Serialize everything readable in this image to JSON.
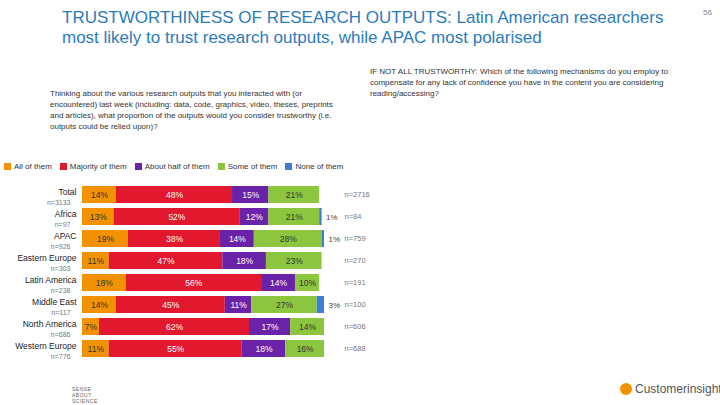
{
  "chart_data": {
    "type": "bar",
    "title": "TRUSTWORTHINESS OF RESEARCH OUTPUTS: Latin American researchers most likely to trust research outputs, while APAC most polarised",
    "page_number": "56",
    "question": "Thinking about the various research outputs that you interacted with (or encountered) last week (including: data, code, graphics, video, theses, preprints and articles), what proportion of the outputs would you consider trustworthy (i.e. outputs could be relied upon)?",
    "followup_question": "IF NOT ALL TRUSTWORTHY: Which of the following mechanisms do you employ to compensate for any lack of confidence you have in the content you are considering reading/accessing?",
    "categories": [
      "Total",
      "Africa",
      "APAC",
      "Eastern Europe",
      "Latin America",
      "Middle East",
      "North America",
      "Western Europe"
    ],
    "base_n": [
      "n=3133",
      "n=97",
      "n=926",
      "n=303",
      "n=238",
      "n=117",
      "n=686",
      "n=776"
    ],
    "followup_n": [
      "n=2716",
      "n=84",
      "n=759",
      "n=270",
      "n=191",
      "n=100",
      "n=606",
      "n=688"
    ],
    "series": [
      {
        "name": "All of them",
        "color": "#f39200",
        "values": [
          14,
          13,
          19,
          11,
          18,
          14,
          7,
          11
        ],
        "value_labels": [
          "14%",
          "13%",
          "19%",
          "11%",
          "18%",
          "14%",
          "7%",
          "11%"
        ]
      },
      {
        "name": "Majority of them",
        "color": "#e2182f",
        "values": [
          48,
          52,
          38,
          47,
          56,
          45,
          62,
          55
        ],
        "value_labels": [
          "48%",
          "52%",
          "38%",
          "47%",
          "56%",
          "45%",
          "62%",
          "55%"
        ]
      },
      {
        "name": "About half of them",
        "color": "#6a22a8",
        "values": [
          15,
          12,
          14,
          18,
          14,
          11,
          17,
          18
        ],
        "value_labels": [
          "15%",
          "12%",
          "14%",
          "18%",
          "14%",
          "11%",
          "17%",
          "18%"
        ]
      },
      {
        "name": "Some of them",
        "color": "#8cc63f",
        "values": [
          21,
          21,
          28,
          23,
          10,
          27,
          14,
          16
        ],
        "value_labels": [
          "21%",
          "21%",
          "28%",
          "23%",
          "10%",
          "27%",
          "14%",
          "16%"
        ]
      },
      {
        "name": "None of them",
        "color": "#3d7fd6",
        "values": [
          null,
          1,
          1,
          null,
          null,
          3,
          null,
          null
        ],
        "value_labels": [
          null,
          "1%",
          "1%",
          null,
          null,
          "3%",
          null,
          null
        ]
      }
    ],
    "xlim": [
      0,
      100
    ],
    "orientation": "horizontal",
    "stacked": true,
    "data_labels": true,
    "tick_labels": false,
    "legend": "top",
    "footer_left": "SENSE ABOUT SCIENCE",
    "footer_right": "Customerinsights"
  }
}
